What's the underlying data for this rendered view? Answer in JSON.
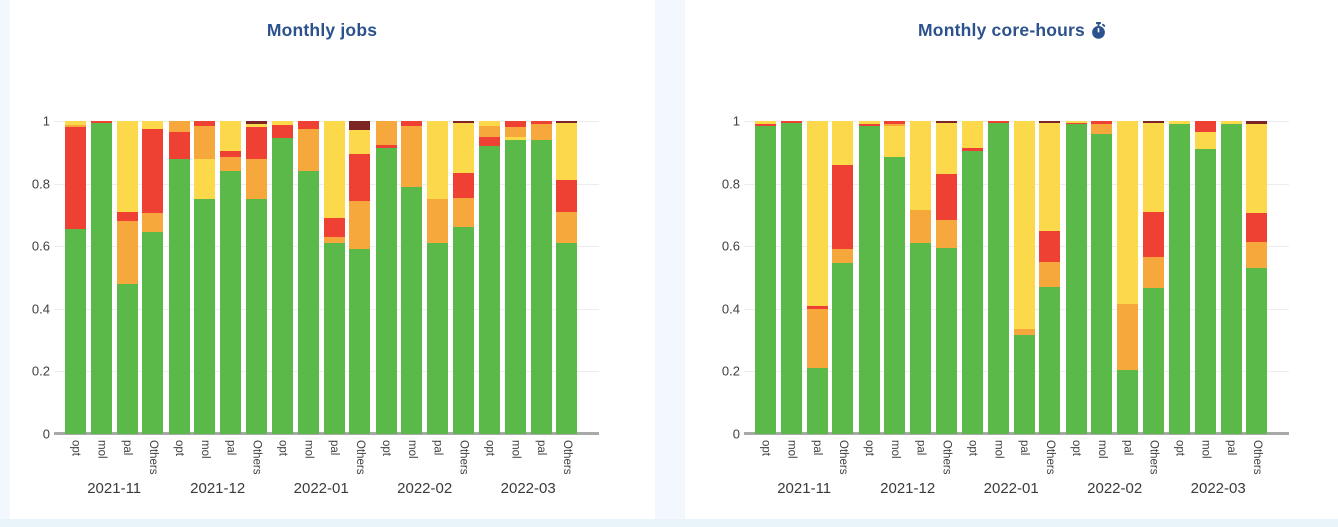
{
  "page": {
    "background": "#F3F7FE",
    "card_background": "#FFFFFF",
    "bottom_strip_color": "#E9F3FA"
  },
  "colors": {
    "green": "#5BB94A",
    "orange": "#F6A83C",
    "red": "#EE4134",
    "yellow": "#FCD84B",
    "darkred": "#7C2524",
    "title_text": "#2B528C",
    "axis_text": "#3F3F3F",
    "axis_line": "#A9A9A9",
    "gridline": "#EDEDED"
  },
  "chart_data": [
    {
      "type": "bar",
      "stacked": true,
      "normalized": true,
      "title": "Monthly jobs",
      "ylim": [
        0,
        1
      ],
      "yticks": [
        "0",
        "0.2",
        "0.4",
        "0.6",
        "0.8",
        "1"
      ],
      "bar_labels": [
        "opt",
        "mol",
        "pal",
        "Others"
      ],
      "legend_position": "none",
      "grid": true,
      "segment_order": "bottom-to-top",
      "groups": [
        {
          "month": "2021-11",
          "bars": [
            {
              "label": "opt",
              "segments": [
                [
                  "green",
                  0.655
                ],
                [
                  "red",
                  0.325
                ],
                [
                  "orange",
                  0.008
                ],
                [
                  "yellow",
                  0.012
                ]
              ]
            },
            {
              "label": "mol",
              "segments": [
                [
                  "green",
                  0.995
                ],
                [
                  "red",
                  0.005
                ]
              ]
            },
            {
              "label": "pal",
              "segments": [
                [
                  "green",
                  0.48
                ],
                [
                  "orange",
                  0.2
                ],
                [
                  "red",
                  0.03
                ],
                [
                  "yellow",
                  0.29
                ]
              ]
            },
            {
              "label": "Others",
              "segments": [
                [
                  "green",
                  0.645
                ],
                [
                  "orange",
                  0.06
                ],
                [
                  "red",
                  0.27
                ],
                [
                  "yellow",
                  0.025
                ]
              ]
            }
          ]
        },
        {
          "month": "2021-12",
          "bars": [
            {
              "label": "opt",
              "segments": [
                [
                  "green",
                  0.88
                ],
                [
                  "red",
                  0.085
                ],
                [
                  "orange",
                  0.035
                ]
              ]
            },
            {
              "label": "mol",
              "segments": [
                [
                  "green",
                  0.75
                ],
                [
                  "yellow",
                  0.13
                ],
                [
                  "orange",
                  0.105
                ],
                [
                  "red",
                  0.015
                ]
              ]
            },
            {
              "label": "pal",
              "segments": [
                [
                  "green",
                  0.84
                ],
                [
                  "orange",
                  0.045
                ],
                [
                  "red",
                  0.02
                ],
                [
                  "yellow",
                  0.095
                ]
              ]
            },
            {
              "label": "Others",
              "segments": [
                [
                  "green",
                  0.75
                ],
                [
                  "orange",
                  0.13
                ],
                [
                  "red",
                  0.1
                ],
                [
                  "yellow",
                  0.012
                ],
                [
                  "darkred",
                  0.008
                ]
              ]
            }
          ]
        },
        {
          "month": "2022-01",
          "bars": [
            {
              "label": "opt",
              "segments": [
                [
                  "green",
                  0.945
                ],
                [
                  "red",
                  0.042
                ],
                [
                  "yellow",
                  0.013
                ]
              ]
            },
            {
              "label": "mol",
              "segments": [
                [
                  "green",
                  0.84
                ],
                [
                  "orange",
                  0.135
                ],
                [
                  "red",
                  0.025
                ]
              ]
            },
            {
              "label": "pal",
              "segments": [
                [
                  "green",
                  0.61
                ],
                [
                  "orange",
                  0.02
                ],
                [
                  "red",
                  0.06
                ],
                [
                  "yellow",
                  0.31
                ]
              ]
            },
            {
              "label": "Others",
              "segments": [
                [
                  "green",
                  0.59
                ],
                [
                  "orange",
                  0.155
                ],
                [
                  "red",
                  0.15
                ],
                [
                  "yellow",
                  0.075
                ],
                [
                  "darkred",
                  0.03
                ]
              ]
            }
          ]
        },
        {
          "month": "2022-02",
          "bars": [
            {
              "label": "opt",
              "segments": [
                [
                  "green",
                  0.915
                ],
                [
                  "red",
                  0.008
                ],
                [
                  "orange",
                  0.077
                ]
              ]
            },
            {
              "label": "mol",
              "segments": [
                [
                  "green",
                  0.79
                ],
                [
                  "orange",
                  0.195
                ],
                [
                  "red",
                  0.015
                ]
              ]
            },
            {
              "label": "pal",
              "segments": [
                [
                  "green",
                  0.61
                ],
                [
                  "orange",
                  0.14
                ],
                [
                  "yellow",
                  0.25
                ]
              ]
            },
            {
              "label": "Others",
              "segments": [
                [
                  "green",
                  0.66
                ],
                [
                  "orange",
                  0.095
                ],
                [
                  "red",
                  0.08
                ],
                [
                  "yellow",
                  0.16
                ],
                [
                  "darkred",
                  0.005
                ]
              ]
            }
          ]
        },
        {
          "month": "2022-03",
          "bars": [
            {
              "label": "opt",
              "segments": [
                [
                  "green",
                  0.92
                ],
                [
                  "red",
                  0.03
                ],
                [
                  "orange",
                  0.035
                ],
                [
                  "yellow",
                  0.015
                ]
              ]
            },
            {
              "label": "mol",
              "segments": [
                [
                  "green",
                  0.94
                ],
                [
                  "yellow",
                  0.01
                ],
                [
                  "orange",
                  0.03
                ],
                [
                  "red",
                  0.02
                ]
              ]
            },
            {
              "label": "pal",
              "segments": [
                [
                  "green",
                  0.94
                ],
                [
                  "orange",
                  0.05
                ],
                [
                  "red",
                  0.01
                ]
              ]
            },
            {
              "label": "Others",
              "segments": [
                [
                  "green",
                  0.61
                ],
                [
                  "orange",
                  0.1
                ],
                [
                  "red",
                  0.1
                ],
                [
                  "yellow",
                  0.185
                ],
                [
                  "darkred",
                  0.005
                ]
              ]
            }
          ]
        }
      ]
    },
    {
      "type": "bar",
      "stacked": true,
      "normalized": true,
      "title": "Monthly core-hours",
      "title_icon": "stopwatch-icon",
      "ylim": [
        0,
        1
      ],
      "yticks": [
        "0",
        "0.2",
        "0.4",
        "0.6",
        "0.8",
        "1"
      ],
      "bar_labels": [
        "opt",
        "mol",
        "pal",
        "Others"
      ],
      "legend_position": "none",
      "grid": true,
      "segment_order": "bottom-to-top",
      "groups": [
        {
          "month": "2021-11",
          "bars": [
            {
              "label": "opt",
              "segments": [
                [
                  "green",
                  0.985
                ],
                [
                  "red",
                  0.005
                ],
                [
                  "yellow",
                  0.01
                ]
              ]
            },
            {
              "label": "mol",
              "segments": [
                [
                  "green",
                  0.995
                ],
                [
                  "red",
                  0.005
                ]
              ]
            },
            {
              "label": "pal",
              "segments": [
                [
                  "green",
                  0.21
                ],
                [
                  "orange",
                  0.19
                ],
                [
                  "red",
                  0.01
                ],
                [
                  "yellow",
                  0.59
                ]
              ]
            },
            {
              "label": "Others",
              "segments": [
                [
                  "green",
                  0.545
                ],
                [
                  "orange",
                  0.045
                ],
                [
                  "red",
                  0.27
                ],
                [
                  "yellow",
                  0.14
                ]
              ]
            }
          ]
        },
        {
          "month": "2021-12",
          "bars": [
            {
              "label": "opt",
              "segments": [
                [
                  "green",
                  0.985
                ],
                [
                  "red",
                  0.007
                ],
                [
                  "yellow",
                  0.008
                ]
              ]
            },
            {
              "label": "mol",
              "segments": [
                [
                  "green",
                  0.885
                ],
                [
                  "yellow",
                  0.1
                ],
                [
                  "orange",
                  0.005
                ],
                [
                  "red",
                  0.01
                ]
              ]
            },
            {
              "label": "pal",
              "segments": [
                [
                  "green",
                  0.61
                ],
                [
                  "orange",
                  0.105
                ],
                [
                  "yellow",
                  0.285
                ]
              ]
            },
            {
              "label": "Others",
              "segments": [
                [
                  "green",
                  0.595
                ],
                [
                  "orange",
                  0.09
                ],
                [
                  "red",
                  0.145
                ],
                [
                  "yellow",
                  0.165
                ],
                [
                  "darkred",
                  0.005
                ]
              ]
            }
          ]
        },
        {
          "month": "2022-01",
          "bars": [
            {
              "label": "opt",
              "segments": [
                [
                  "green",
                  0.905
                ],
                [
                  "red",
                  0.01
                ],
                [
                  "yellow",
                  0.085
                ]
              ]
            },
            {
              "label": "mol",
              "segments": [
                [
                  "green",
                  0.993
                ],
                [
                  "red",
                  0.007
                ]
              ]
            },
            {
              "label": "pal",
              "segments": [
                [
                  "green",
                  0.315
                ],
                [
                  "orange",
                  0.02
                ],
                [
                  "yellow",
                  0.665
                ]
              ]
            },
            {
              "label": "Others",
              "segments": [
                [
                  "green",
                  0.47
                ],
                [
                  "orange",
                  0.08
                ],
                [
                  "red",
                  0.1
                ],
                [
                  "yellow",
                  0.345
                ],
                [
                  "darkred",
                  0.005
                ]
              ]
            }
          ]
        },
        {
          "month": "2022-02",
          "bars": [
            {
              "label": "opt",
              "segments": [
                [
                  "green",
                  0.99
                ],
                [
                  "red",
                  0.005
                ],
                [
                  "yellow",
                  0.005
                ]
              ]
            },
            {
              "label": "mol",
              "segments": [
                [
                  "green",
                  0.96
                ],
                [
                  "orange",
                  0.03
                ],
                [
                  "red",
                  0.01
                ]
              ]
            },
            {
              "label": "pal",
              "segments": [
                [
                  "green",
                  0.205
                ],
                [
                  "orange",
                  0.21
                ],
                [
                  "yellow",
                  0.585
                ]
              ]
            },
            {
              "label": "Others",
              "segments": [
                [
                  "green",
                  0.465
                ],
                [
                  "orange",
                  0.1
                ],
                [
                  "red",
                  0.145
                ],
                [
                  "yellow",
                  0.285
                ],
                [
                  "darkred",
                  0.005
                ]
              ]
            }
          ]
        },
        {
          "month": "2022-03",
          "bars": [
            {
              "label": "opt",
              "segments": [
                [
                  "green",
                  0.99
                ],
                [
                  "yellow",
                  0.01
                ]
              ]
            },
            {
              "label": "mol",
              "segments": [
                [
                  "green",
                  0.91
                ],
                [
                  "yellow",
                  0.055
                ],
                [
                  "red",
                  0.035
                ]
              ]
            },
            {
              "label": "pal",
              "segments": [
                [
                  "green",
                  0.99
                ],
                [
                  "yellow",
                  0.01
                ]
              ]
            },
            {
              "label": "Others",
              "segments": [
                [
                  "green",
                  0.53
                ],
                [
                  "orange",
                  0.085
                ],
                [
                  "red",
                  0.09
                ],
                [
                  "yellow",
                  0.285
                ],
                [
                  "darkred",
                  0.01
                ]
              ]
            }
          ]
        }
      ]
    }
  ]
}
